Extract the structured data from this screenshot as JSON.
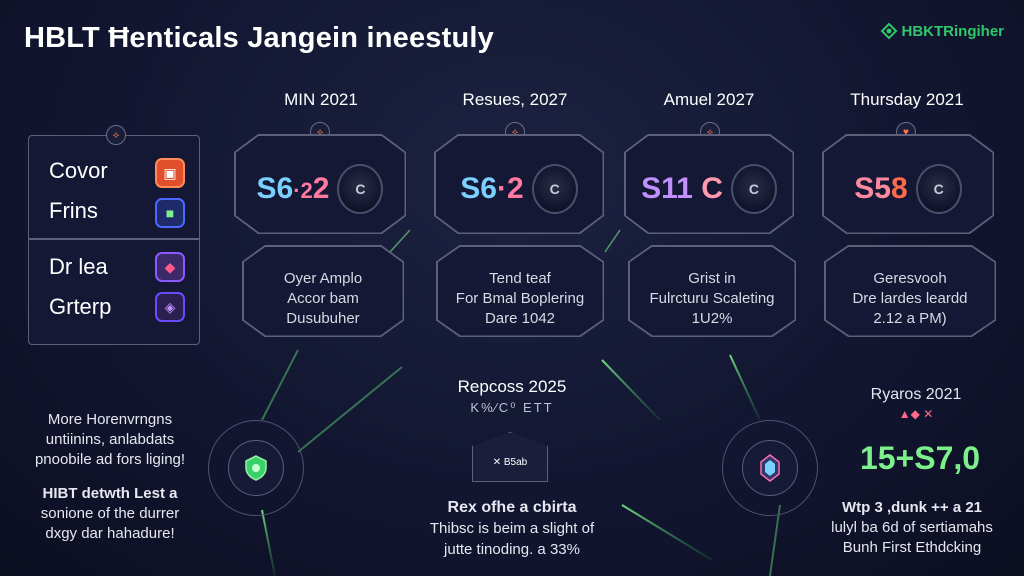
{
  "header": {
    "title": "HBLT Ħenticals Jangein ineestuly",
    "brand": "HBKTRingiher"
  },
  "columns": [
    {
      "heading": "MIN 2021",
      "price_main": "S6",
      "price_mid": "·2",
      "price_end": "2",
      "coin_label": "C",
      "desc": [
        "Oyer Amplo",
        "Accor bam",
        "Dusubuher"
      ],
      "accent": "#7ad0ff"
    },
    {
      "heading": "Resues, 2027",
      "price_main": "S6",
      "price_mid": "·",
      "price_end": "2",
      "coin_label": "C",
      "desc": [
        "Tend teaf",
        "For Bmal Boplering",
        "Dare 1042"
      ],
      "accent": "#7ad0ff"
    },
    {
      "heading": "Amuel 2027",
      "price_main": "S11",
      "price_mid": "",
      "price_end": "C",
      "coin_label": "C",
      "desc": [
        "Grist in",
        "Fulrcturu Scaleting",
        "1U2%"
      ],
      "accent": "#c090ff"
    },
    {
      "heading": "Thursday 2021",
      "price_main": "S5",
      "price_mid": "",
      "price_end": "8",
      "coin_label": "C",
      "desc": [
        "Geresvooh",
        "Dre lardes leardd",
        "2.12 a PM)"
      ],
      "accent": "#ff8a6a"
    }
  ],
  "left_panel": {
    "items": [
      "Covor",
      "Frins",
      "Dr lea",
      "Grterp"
    ]
  },
  "center": {
    "title": "Repcoss 2025",
    "subtitle": "K%⁄C⁰ ETT",
    "box_label": "✕ B5ab",
    "bottom_lines": [
      "Rex ofhe a cbirta",
      "Thibsc is beim a slight of",
      "jutte tinoding. a 33%"
    ]
  },
  "left_bottom": {
    "block1": [
      "More Horenvrngns",
      "untiinins, anlabdats",
      "pnoobile ad fors liging!"
    ],
    "block2": [
      "HIBT detwth Lest a",
      "sonione of the durrer",
      "dxgy dar hahadure!"
    ]
  },
  "right_bottom": {
    "heading": "Ryaros 2021",
    "sub": "▲◆ ✕",
    "value": "15+S7,0",
    "lines": [
      "Wtp 3 ,dunk ++ a 21",
      "lulyl ba 6d of sertiamahs",
      "Bunh First Ethdcking"
    ]
  },
  "colors": {
    "background": "#121631",
    "card_border": "#5d6078",
    "green_accent": "#7cf08a",
    "brand_green": "#2fc86a"
  }
}
